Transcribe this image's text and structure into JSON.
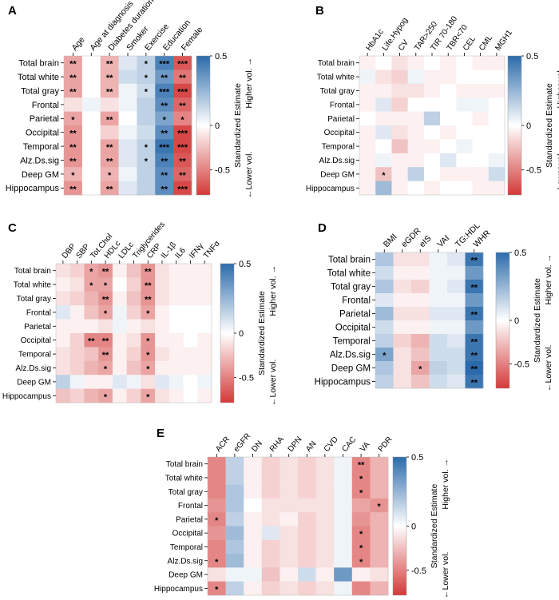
{
  "colors": {
    "pos": "#2c6bab",
    "mid": "#ffffff",
    "neg": "#d33a39",
    "grid": "#ffffff"
  },
  "row_labels": [
    "Total brain",
    "Total white",
    "Total gray",
    "Frontal",
    "Parietal",
    "Occipital",
    "Temporal",
    "Alz.Ds.sig",
    "Deep GM",
    "Hippocampus"
  ],
  "colorbar": {
    "max_label": "0.5",
    "mid_label": "0",
    "min_label": "-0.5",
    "title": "Standardized Estimate",
    "higher": "Higher vol. →",
    "lower": "←Lower vol."
  },
  "chart_data": [
    {
      "type": "heatmap",
      "panel": "A",
      "columns": [
        "Age",
        "Age at diagnosis",
        "Diabetes duration",
        "Smoker",
        "Exercise",
        "Education",
        "Female"
      ],
      "rows": [
        "Total brain",
        "Total white",
        "Total gray",
        "Frontal",
        "Parietal",
        "Occipital",
        "Temporal",
        "Alz.Ds.sig",
        "Deep GM",
        "Hippocampus"
      ],
      "values": [
        [
          -0.3,
          0.0,
          -0.25,
          0.1,
          0.2,
          0.55,
          -0.55
        ],
        [
          -0.3,
          0.0,
          -0.25,
          0.15,
          0.2,
          0.45,
          -0.45
        ],
        [
          -0.3,
          0.0,
          -0.25,
          0.05,
          0.15,
          0.55,
          -0.6
        ],
        [
          -0.1,
          0.05,
          -0.1,
          0.05,
          0.2,
          0.5,
          -0.5
        ],
        [
          -0.3,
          0.0,
          -0.3,
          0.0,
          0.2,
          0.4,
          -0.4
        ],
        [
          -0.35,
          0.0,
          -0.15,
          0.05,
          0.15,
          0.5,
          -0.6
        ],
        [
          -0.35,
          0.0,
          -0.3,
          0.1,
          0.2,
          0.6,
          -0.6
        ],
        [
          -0.35,
          0.0,
          -0.3,
          0.1,
          0.2,
          0.55,
          -0.55
        ],
        [
          -0.25,
          0.0,
          -0.25,
          0.05,
          0.2,
          0.5,
          -0.5
        ],
        [
          -0.35,
          0.0,
          -0.3,
          0.1,
          0.2,
          0.5,
          -0.6
        ]
      ],
      "stars": [
        [
          "**",
          "",
          "**",
          "",
          "*",
          "***",
          "***"
        ],
        [
          "**",
          "",
          "**",
          "",
          "*",
          "**",
          "**"
        ],
        [
          "**",
          "",
          "**",
          "",
          "*",
          "***",
          "***"
        ],
        [
          "",
          "",
          "",
          "",
          "",
          "**",
          "**"
        ],
        [
          "*",
          "",
          "**",
          "",
          "",
          "*",
          "*"
        ],
        [
          "**",
          "",
          "",
          "",
          "",
          "**",
          "***"
        ],
        [
          "**",
          "",
          "**",
          "",
          "*",
          "***",
          "***"
        ],
        [
          "**",
          "",
          "**",
          "",
          "*",
          "**",
          "**"
        ],
        [
          "*",
          "",
          "*",
          "",
          "",
          "**",
          "**"
        ],
        [
          "**",
          "",
          "**",
          "",
          "",
          "**",
          "***"
        ]
      ]
    },
    {
      "type": "heatmap",
      "panel": "B",
      "columns": [
        "HbA1c",
        "Life.Hypog",
        "CV",
        "TAR>250",
        "TIR 70-180",
        "TBR<70",
        "CEL",
        "CML",
        "MGH1"
      ],
      "rows": [
        "Total brain",
        "Total white",
        "Total gray",
        "Frontal",
        "Parietal",
        "Occipital",
        "Temporal",
        "Alz.Ds.sig",
        "Deep GM",
        "Hippocampus"
      ],
      "values": [
        [
          -0.05,
          0.0,
          -0.1,
          -0.05,
          0.0,
          -0.05,
          0.0,
          -0.05,
          -0.05
        ],
        [
          0.05,
          -0.1,
          -0.15,
          0.05,
          -0.05,
          -0.05,
          0.0,
          0.0,
          0.0
        ],
        [
          -0.05,
          -0.05,
          -0.1,
          -0.1,
          -0.05,
          0.0,
          -0.05,
          -0.05,
          -0.05
        ],
        [
          -0.05,
          0.1,
          -0.15,
          0.0,
          0.0,
          0.0,
          0.05,
          0.05,
          0.0
        ],
        [
          0.0,
          -0.05,
          -0.05,
          -0.05,
          0.2,
          0.0,
          0.0,
          -0.05,
          0.0
        ],
        [
          -0.05,
          0.1,
          -0.1,
          -0.05,
          0.0,
          -0.05,
          0.0,
          0.0,
          0.0
        ],
        [
          -0.05,
          0.0,
          -0.2,
          -0.05,
          -0.05,
          0.0,
          0.05,
          0.0,
          0.0
        ],
        [
          -0.05,
          0.05,
          -0.05,
          -0.05,
          0.0,
          0.1,
          0.0,
          0.0,
          0.05
        ],
        [
          -0.05,
          -0.2,
          -0.05,
          0.2,
          0.0,
          -0.05,
          -0.05,
          -0.05,
          0.15
        ],
        [
          -0.05,
          0.3,
          -0.05,
          0.0,
          -0.05,
          0.0,
          0.0,
          -0.05,
          -0.05
        ]
      ],
      "stars": [
        [
          "",
          "",
          "",
          "",
          "",
          "",
          "",
          "",
          ""
        ],
        [
          "",
          "",
          "",
          "",
          "",
          "",
          "",
          "",
          ""
        ],
        [
          "",
          "",
          "",
          "",
          "",
          "",
          "",
          "",
          ""
        ],
        [
          "",
          "",
          "",
          "",
          "",
          "",
          "",
          "",
          ""
        ],
        [
          "",
          "",
          "",
          "",
          "",
          "",
          "",
          "",
          ""
        ],
        [
          "",
          "",
          "",
          "",
          "",
          "",
          "",
          "",
          ""
        ],
        [
          "",
          "",
          "",
          "",
          "",
          "",
          "",
          "",
          ""
        ],
        [
          "",
          "",
          "",
          "",
          "",
          "",
          "",
          "",
          ""
        ],
        [
          "",
          "*",
          "",
          "",
          "",
          "",
          "",
          "",
          ""
        ],
        [
          "",
          "",
          "",
          "",
          "",
          "",
          "",
          "",
          ""
        ]
      ]
    },
    {
      "type": "heatmap",
      "panel": "C",
      "columns": [
        "DBP",
        "SBP",
        "Tot.Chol",
        "HDLc",
        "LDLc",
        "Triglycerides",
        "CRP",
        "IL-1β",
        "IL6",
        "IFNγ",
        "TNFα"
      ],
      "rows": [
        "Total brain",
        "Total white",
        "Total gray",
        "Frontal",
        "Parietal",
        "Occipital",
        "Temporal",
        "Alz.Ds.sig",
        "Deep GM",
        "Hippocampus"
      ],
      "values": [
        [
          -0.1,
          -0.15,
          -0.3,
          -0.35,
          -0.05,
          -0.2,
          -0.35,
          -0.1,
          -0.05,
          -0.05,
          -0.05
        ],
        [
          -0.05,
          -0.1,
          -0.3,
          -0.3,
          0.0,
          -0.15,
          -0.35,
          -0.1,
          -0.05,
          -0.05,
          -0.05
        ],
        [
          -0.1,
          -0.15,
          -0.25,
          -0.35,
          -0.05,
          -0.2,
          -0.35,
          -0.1,
          -0.05,
          -0.05,
          -0.05
        ],
        [
          0.1,
          -0.05,
          -0.2,
          -0.3,
          0.05,
          -0.15,
          -0.3,
          -0.05,
          0.0,
          0.0,
          0.0
        ],
        [
          -0.05,
          -0.05,
          -0.05,
          -0.1,
          0.05,
          -0.05,
          -0.1,
          -0.05,
          0.0,
          0.0,
          0.0
        ],
        [
          -0.05,
          -0.15,
          -0.4,
          -0.4,
          -0.05,
          -0.1,
          -0.35,
          -0.05,
          -0.05,
          0.0,
          -0.05
        ],
        [
          -0.1,
          -0.15,
          -0.2,
          -0.35,
          -0.05,
          -0.15,
          -0.35,
          -0.1,
          -0.05,
          -0.05,
          -0.05
        ],
        [
          -0.1,
          -0.15,
          -0.25,
          -0.3,
          -0.05,
          -0.2,
          -0.3,
          -0.05,
          -0.05,
          -0.05,
          -0.05
        ],
        [
          0.2,
          0.05,
          -0.05,
          -0.05,
          0.1,
          0.05,
          -0.1,
          0.1,
          0.05,
          0.0,
          0.05
        ],
        [
          -0.2,
          -0.15,
          -0.25,
          -0.3,
          -0.05,
          -0.15,
          -0.3,
          -0.1,
          -0.05,
          0.0,
          -0.05
        ]
      ],
      "stars": [
        [
          "",
          "",
          "*",
          "**",
          "",
          "",
          "**",
          "",
          "",
          "",
          ""
        ],
        [
          "",
          "",
          "*",
          "*",
          "",
          "",
          "**",
          "",
          "",
          "",
          ""
        ],
        [
          "",
          "",
          "",
          "**",
          "",
          "",
          "**",
          "",
          "",
          "",
          ""
        ],
        [
          "",
          "",
          "",
          "*",
          "",
          "",
          "*",
          "",
          "",
          "",
          ""
        ],
        [
          "",
          "",
          "",
          "",
          "",
          "",
          "",
          "",
          "",
          "",
          ""
        ],
        [
          "",
          "",
          "**",
          "**",
          "",
          "",
          "*",
          "",
          "",
          "",
          ""
        ],
        [
          "",
          "",
          "",
          "**",
          "",
          "",
          "*",
          "",
          "",
          "",
          ""
        ],
        [
          "",
          "",
          "",
          "*",
          "",
          "",
          "*",
          "",
          "",
          "",
          ""
        ],
        [
          "",
          "",
          "",
          "",
          "",
          "",
          "",
          "",
          "",
          "",
          ""
        ],
        [
          "",
          "",
          "",
          "*",
          "",
          "",
          "*",
          "",
          "",
          "",
          ""
        ]
      ]
    },
    {
      "type": "heatmap",
      "panel": "D",
      "columns": [
        "BMI",
        "eGDR",
        "eIS",
        "VAI",
        "TG:HDL",
        "WHR"
      ],
      "rows": [
        "Total brain",
        "Total white",
        "Total gray",
        "Frontal",
        "Parietal",
        "Occipital",
        "Temporal",
        "Alz.Ds.sig",
        "Deep GM",
        "Hippocampus"
      ],
      "values": [
        [
          0.25,
          -0.1,
          -0.1,
          0.05,
          0.1,
          0.6
        ],
        [
          0.15,
          -0.05,
          -0.05,
          0.05,
          0.05,
          0.45
        ],
        [
          0.25,
          -0.1,
          -0.15,
          0.05,
          0.1,
          0.6
        ],
        [
          0.1,
          -0.05,
          -0.05,
          0.05,
          0.05,
          0.45
        ],
        [
          0.3,
          -0.1,
          -0.1,
          0.1,
          0.1,
          0.6
        ],
        [
          0.15,
          -0.05,
          -0.05,
          0.05,
          0.05,
          0.45
        ],
        [
          0.2,
          -0.15,
          -0.25,
          0.15,
          0.1,
          0.6
        ],
        [
          0.4,
          -0.1,
          -0.2,
          0.15,
          0.15,
          0.6
        ],
        [
          0.25,
          -0.1,
          -0.3,
          0.2,
          0.15,
          0.65
        ],
        [
          0.2,
          -0.1,
          -0.2,
          0.15,
          0.1,
          0.6
        ]
      ],
      "stars": [
        [
          "",
          "",
          "",
          "",
          "",
          "**"
        ],
        [
          "",
          "",
          "",
          "",
          "",
          ""
        ],
        [
          "",
          "",
          "",
          "",
          "",
          "**"
        ],
        [
          "",
          "",
          "",
          "",
          "",
          ""
        ],
        [
          "",
          "",
          "",
          "",
          "",
          "**"
        ],
        [
          "",
          "",
          "",
          "",
          "",
          ""
        ],
        [
          "",
          "",
          "",
          "",
          "",
          "**"
        ],
        [
          "*",
          "",
          "",
          "",
          "",
          "**"
        ],
        [
          "",
          "",
          "*",
          "",
          "",
          "**"
        ],
        [
          "",
          "",
          "",
          "",
          "",
          "**"
        ]
      ]
    },
    {
      "type": "heatmap",
      "panel": "E",
      "columns": [
        "ACR",
        "eGFR",
        "DN",
        "RHA",
        "DPN",
        "AN",
        "CVD",
        "CAC",
        "VA",
        "PDR"
      ],
      "rows": [
        "Total brain",
        "Total white",
        "Total gray",
        "Frontal",
        "Parietal",
        "Occipital",
        "Temporal",
        "Alz.Ds.sig",
        "Deep GM",
        "Hippocampus"
      ],
      "values": [
        [
          -0.4,
          0.2,
          -0.05,
          -0.15,
          -0.1,
          -0.15,
          -0.1,
          0.05,
          -0.4,
          -0.25
        ],
        [
          -0.4,
          0.2,
          -0.05,
          -0.15,
          -0.1,
          -0.15,
          -0.1,
          0.05,
          -0.4,
          -0.25
        ],
        [
          -0.4,
          0.25,
          -0.05,
          -0.15,
          -0.1,
          -0.15,
          -0.1,
          0.05,
          -0.4,
          -0.25
        ],
        [
          -0.35,
          0.25,
          0.0,
          -0.1,
          -0.1,
          -0.1,
          -0.1,
          0.05,
          -0.3,
          -0.35
        ],
        [
          -0.4,
          0.2,
          -0.05,
          -0.1,
          -0.05,
          -0.15,
          -0.1,
          0.05,
          -0.35,
          -0.25
        ],
        [
          -0.35,
          0.3,
          -0.05,
          0.1,
          -0.1,
          -0.15,
          -0.1,
          0.05,
          -0.4,
          -0.25
        ],
        [
          -0.4,
          0.25,
          -0.05,
          -0.15,
          -0.1,
          -0.15,
          -0.1,
          0.05,
          -0.4,
          -0.25
        ],
        [
          -0.4,
          0.3,
          -0.05,
          -0.15,
          -0.1,
          -0.15,
          -0.1,
          0.05,
          -0.4,
          -0.25
        ],
        [
          -0.1,
          0.05,
          0.05,
          -0.2,
          -0.05,
          0.15,
          -0.05,
          0.45,
          -0.05,
          -0.1
        ],
        [
          -0.4,
          0.2,
          -0.05,
          -0.15,
          -0.1,
          -0.15,
          -0.1,
          0.05,
          -0.4,
          -0.25
        ]
      ],
      "stars": [
        [
          "",
          "",
          "",
          "",
          "",
          "",
          "",
          "",
          "**",
          ""
        ],
        [
          "",
          "",
          "",
          "",
          "",
          "",
          "",
          "",
          "*",
          ""
        ],
        [
          "",
          "",
          "",
          "",
          "",
          "",
          "",
          "",
          "*",
          ""
        ],
        [
          "",
          "",
          "",
          "",
          "",
          "",
          "",
          "",
          "",
          "*"
        ],
        [
          "*",
          "",
          "",
          "",
          "",
          "",
          "",
          "",
          "",
          ""
        ],
        [
          "",
          "",
          "",
          "",
          "",
          "",
          "",
          "",
          "*",
          ""
        ],
        [
          "",
          "",
          "",
          "",
          "",
          "",
          "",
          "",
          "*",
          ""
        ],
        [
          "*",
          "",
          "",
          "",
          "",
          "",
          "",
          "",
          "*",
          ""
        ],
        [
          "",
          "",
          "",
          "",
          "",
          "",
          "",
          "",
          "",
          ""
        ],
        [
          "*",
          "",
          "",
          "",
          "",
          "",
          "",
          "",
          "",
          ""
        ]
      ]
    }
  ]
}
